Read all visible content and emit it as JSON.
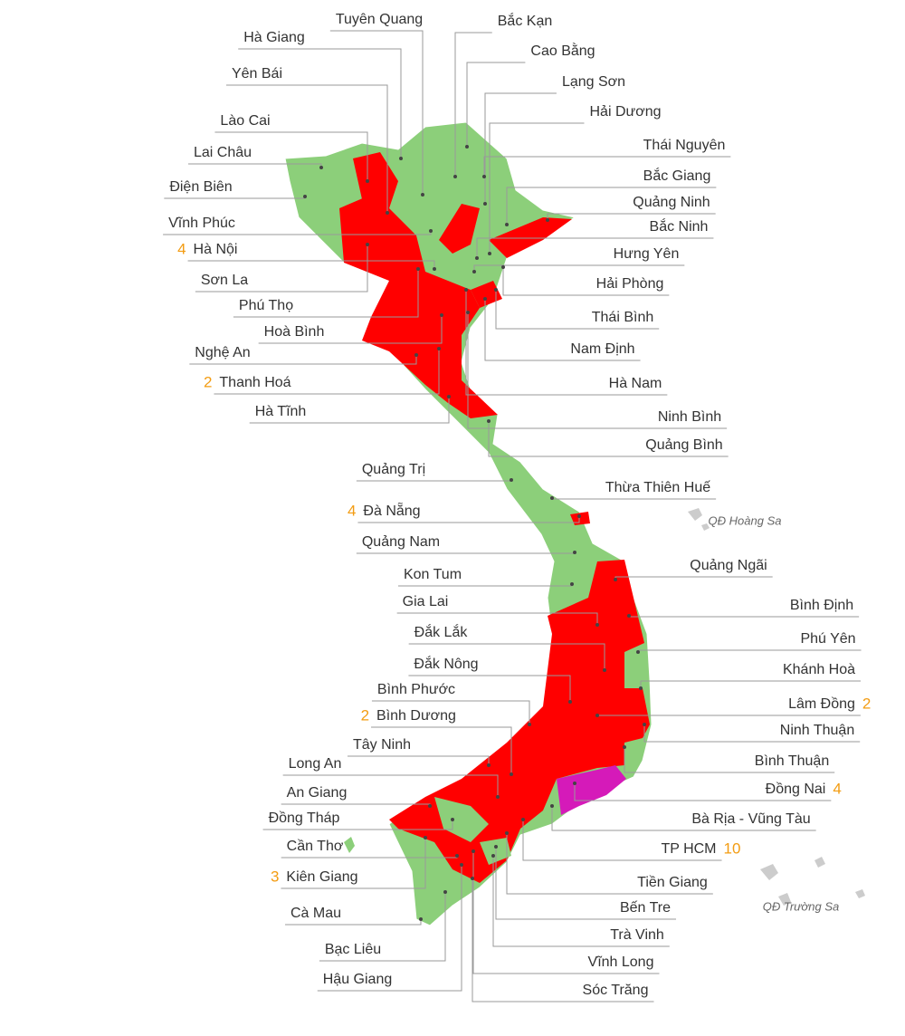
{
  "islands": [
    "QĐ Hoàng Sa",
    "QĐ Trường Sa"
  ],
  "provinces": [
    {
      "name": "Tuyên Quang"
    },
    {
      "name": "Hà Giang"
    },
    {
      "name": "Bắc Kạn"
    },
    {
      "name": "Cao Bằng"
    },
    {
      "name": "Lạng Sơn"
    },
    {
      "name": "Hải Dương"
    },
    {
      "name": "Yên Bái"
    },
    {
      "name": "Lào Cai"
    },
    {
      "name": "Lai Châu"
    },
    {
      "name": "Điện Biên"
    },
    {
      "name": "Vĩnh Phúc"
    },
    {
      "name": "Hà Nội",
      "count": 4
    },
    {
      "name": "Sơn La"
    },
    {
      "name": "Phú Thọ"
    },
    {
      "name": "Hoà Bình"
    },
    {
      "name": "Nghệ An"
    },
    {
      "name": "Thanh Hoá",
      "count": 2
    },
    {
      "name": "Hà Tĩnh"
    },
    {
      "name": "Quảng Trị"
    },
    {
      "name": "Đà Nẵng",
      "count": 4
    },
    {
      "name": "Quảng Nam"
    },
    {
      "name": "Kon Tum"
    },
    {
      "name": "Gia Lai"
    },
    {
      "name": "Đắk Lắk"
    },
    {
      "name": "Đắk Nông"
    },
    {
      "name": "Bình Phước"
    },
    {
      "name": "Bình Dương",
      "count": 2
    },
    {
      "name": "Tây Ninh"
    },
    {
      "name": "Long An"
    },
    {
      "name": "An Giang"
    },
    {
      "name": "Đồng Tháp"
    },
    {
      "name": "Cần Thơ"
    },
    {
      "name": "Kiên Giang",
      "count": 3
    },
    {
      "name": "Cà Mau"
    },
    {
      "name": "Bạc Liêu"
    },
    {
      "name": "Hậu Giang"
    },
    {
      "name": "Thái Nguyên"
    },
    {
      "name": "Bắc Giang"
    },
    {
      "name": "Quảng Ninh"
    },
    {
      "name": "Bắc Ninh"
    },
    {
      "name": "Hưng Yên"
    },
    {
      "name": "Hải Phòng"
    },
    {
      "name": "Thái Bình"
    },
    {
      "name": "Nam Định"
    },
    {
      "name": "Hà Nam"
    },
    {
      "name": "Ninh Bình"
    },
    {
      "name": "Quảng Bình"
    },
    {
      "name": "Thừa Thiên Huế"
    },
    {
      "name": "Quảng Ngãi"
    },
    {
      "name": "Bình Định"
    },
    {
      "name": "Phú Yên"
    },
    {
      "name": "Khánh Hoà"
    },
    {
      "name": "Lâm Đồng",
      "count": 2
    },
    {
      "name": "Ninh Thuận"
    },
    {
      "name": "Bình Thuận"
    },
    {
      "name": "Đồng Nai",
      "count": 4
    },
    {
      "name": "Bà Rịa - Vũng Tàu"
    },
    {
      "name": "TP HCM",
      "count": 10
    },
    {
      "name": "Tiền Giang"
    },
    {
      "name": "Bến Tre"
    },
    {
      "name": "Trà Vinh"
    },
    {
      "name": "Vĩnh Long"
    },
    {
      "name": "Sóc Trăng"
    }
  ]
}
